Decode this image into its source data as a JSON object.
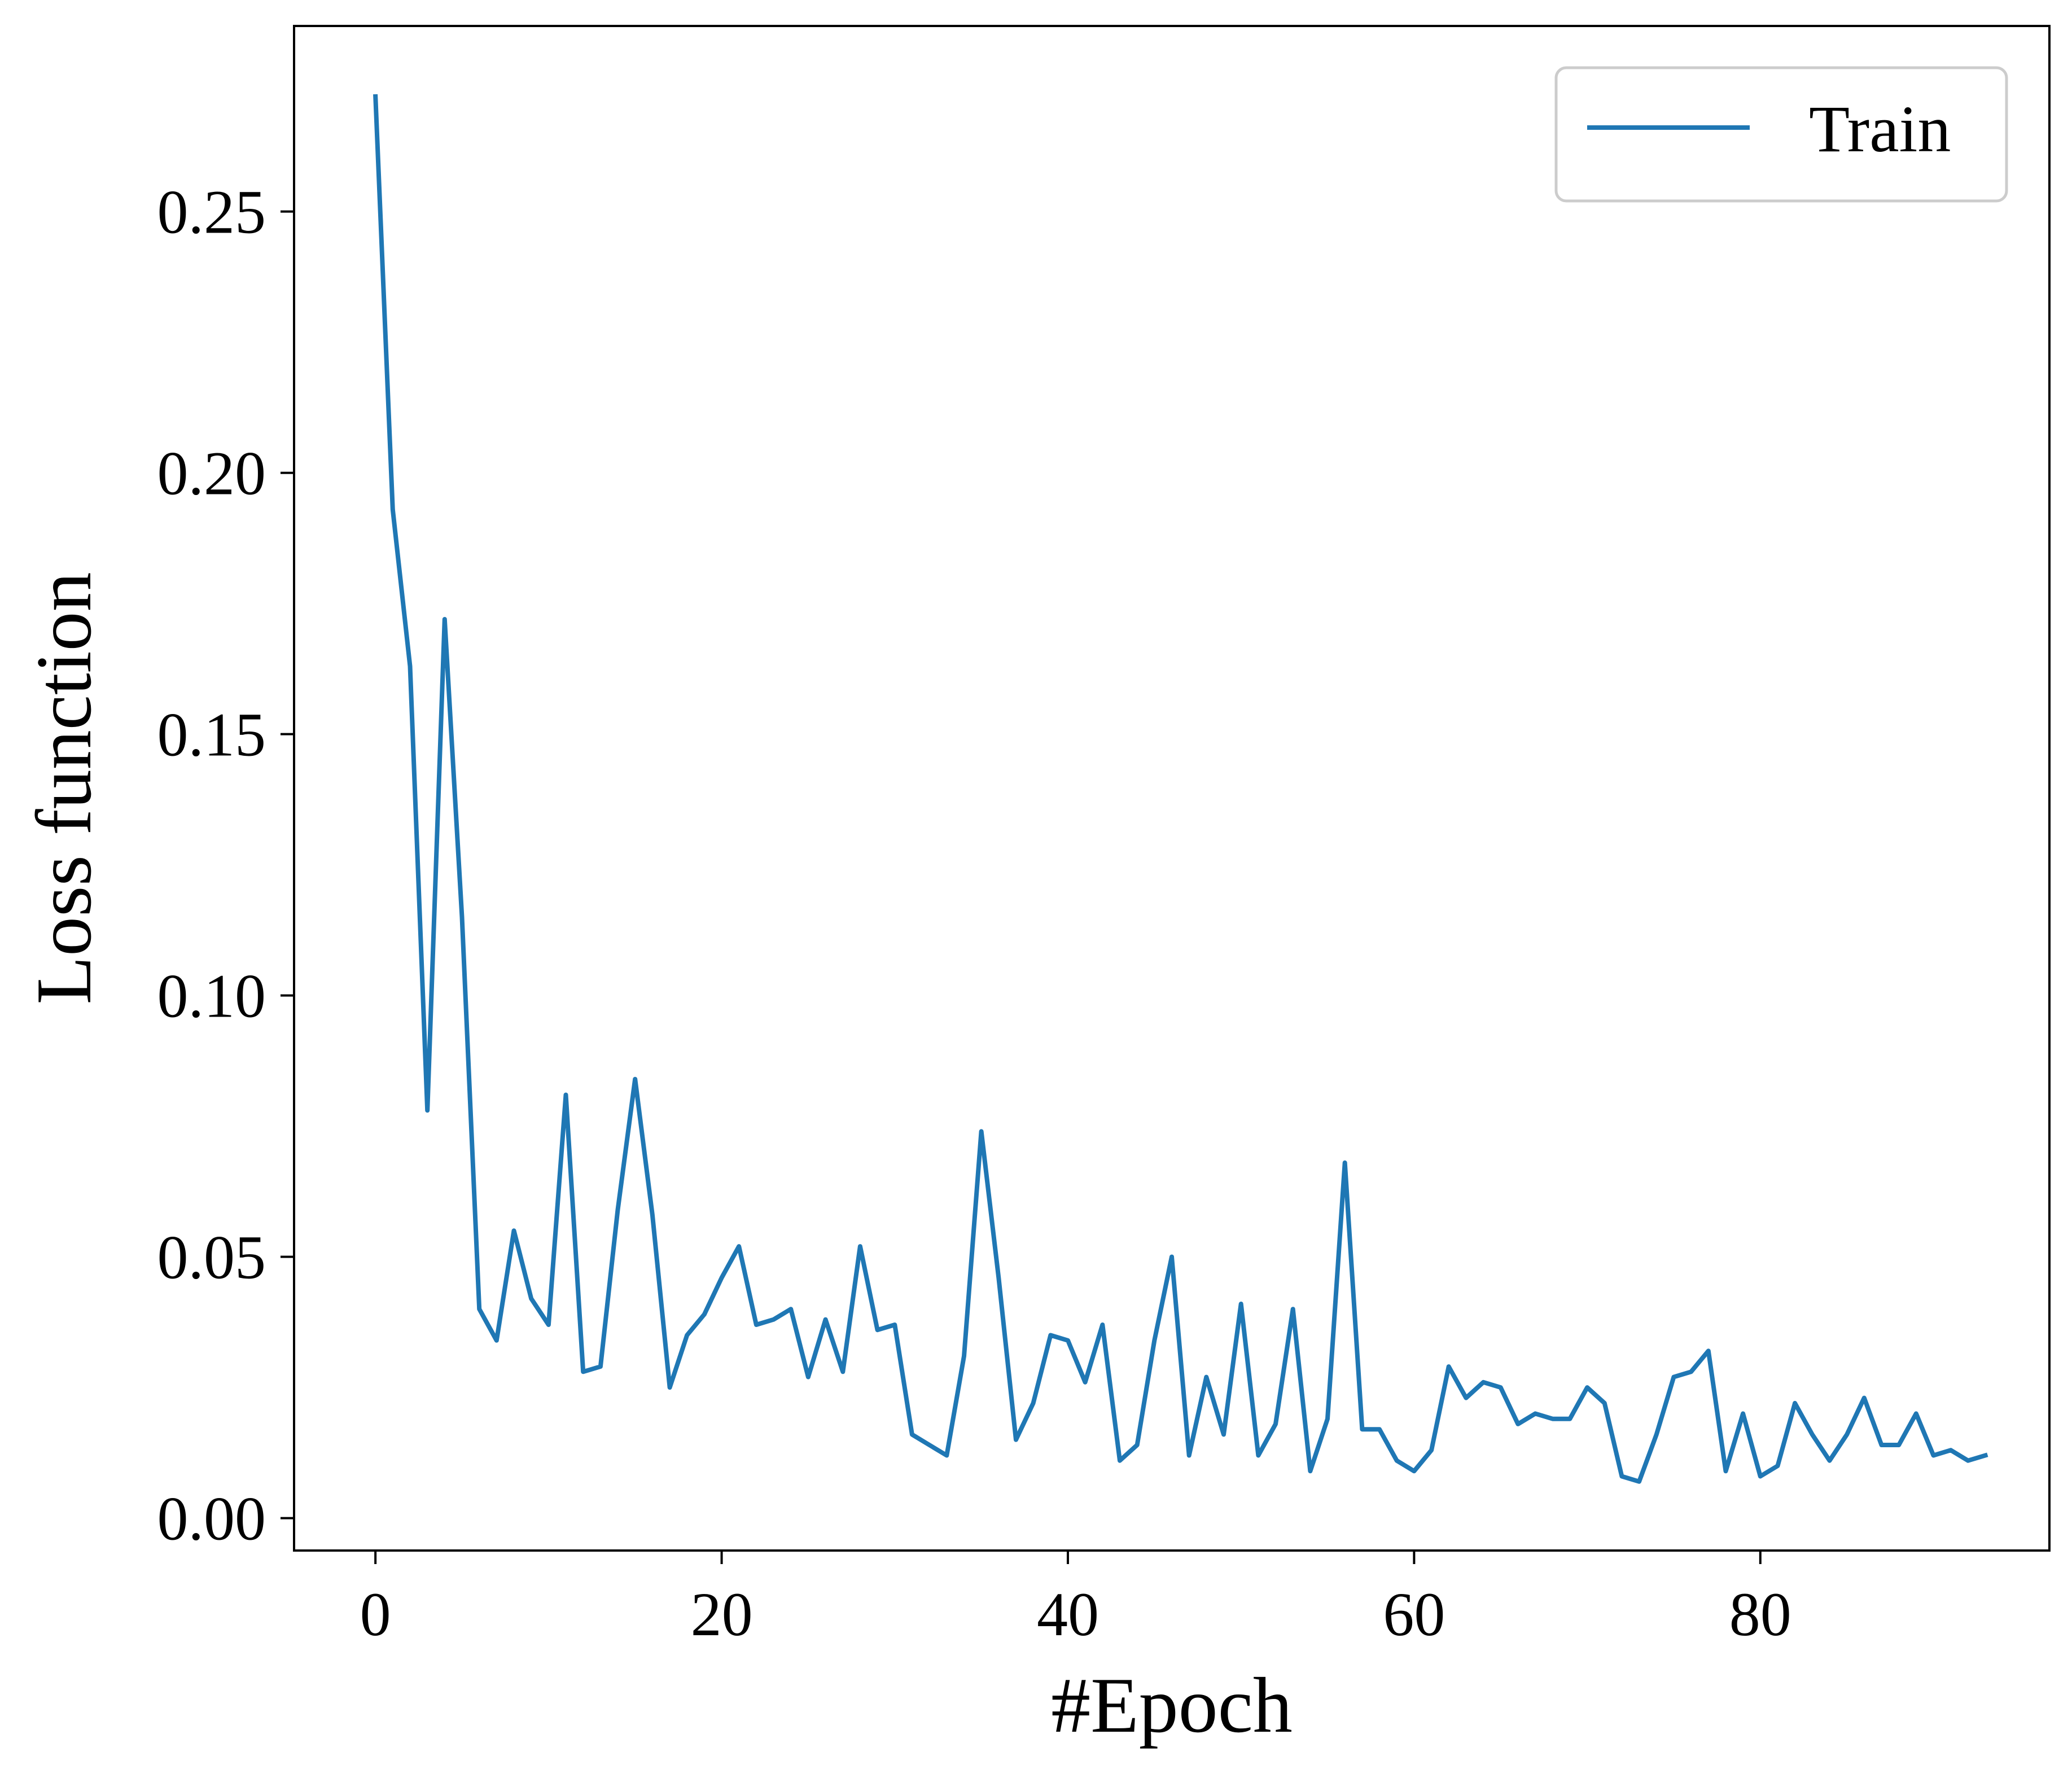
{
  "chart_data": {
    "type": "line",
    "title": "",
    "xlabel": "#Epoch",
    "ylabel": "Loss function",
    "xlim": [
      -4.7,
      96.7
    ],
    "ylim": [
      -0.0062,
      0.2855
    ],
    "xticks": [
      0,
      20,
      40,
      60,
      80
    ],
    "xtick_labels": [
      "0",
      "20",
      "40",
      "60",
      "80"
    ],
    "yticks": [
      0.0,
      0.05,
      0.1,
      0.15,
      0.2,
      0.25
    ],
    "ytick_labels": [
      "0.00",
      "0.05",
      "0.10",
      "0.15",
      "0.20",
      "0.25"
    ],
    "grid": false,
    "legend": {
      "position": "top-right",
      "entries": [
        "Train"
      ]
    },
    "series": [
      {
        "name": "Train",
        "color": "#1f77b4",
        "x": [
          0,
          1,
          2,
          3,
          4,
          5,
          6,
          7,
          8,
          9,
          10,
          11,
          12,
          13,
          14,
          15,
          16,
          17,
          18,
          19,
          20,
          21,
          22,
          23,
          24,
          25,
          26,
          27,
          28,
          29,
          30,
          31,
          32,
          33,
          34,
          35,
          36,
          37,
          38,
          39,
          40,
          41,
          42,
          43,
          44,
          45,
          46,
          47,
          48,
          49,
          50,
          51,
          52,
          53,
          54,
          55,
          56,
          57,
          58,
          59,
          60,
          61,
          62,
          63,
          64,
          65,
          66,
          67,
          68,
          69,
          70,
          71,
          72,
          73,
          74,
          75,
          76,
          77,
          78,
          79,
          80,
          81,
          82,
          83,
          84,
          85,
          86,
          87,
          88,
          89,
          90,
          91,
          92,
          93
        ],
        "y": [
          0.272,
          0.193,
          0.163,
          0.078,
          0.172,
          0.115,
          0.04,
          0.034,
          0.055,
          0.042,
          0.037,
          0.081,
          0.028,
          0.029,
          0.059,
          0.084,
          0.058,
          0.025,
          0.035,
          0.039,
          0.046,
          0.052,
          0.037,
          0.038,
          0.04,
          0.027,
          0.038,
          0.028,
          0.052,
          0.036,
          0.037,
          0.016,
          0.014,
          0.012,
          0.031,
          0.074,
          0.046,
          0.015,
          0.022,
          0.035,
          0.034,
          0.026,
          0.037,
          0.011,
          0.014,
          0.034,
          0.05,
          0.012,
          0.027,
          0.016,
          0.041,
          0.012,
          0.018,
          0.04,
          0.009,
          0.019,
          0.068,
          0.017,
          0.017,
          0.011,
          0.009,
          0.013,
          0.029,
          0.023,
          0.026,
          0.025,
          0.018,
          0.02,
          0.019,
          0.019,
          0.025,
          0.022,
          0.008,
          0.007,
          0.016,
          0.027,
          0.028,
          0.032,
          0.009,
          0.02,
          0.008,
          0.01,
          0.022,
          0.016,
          0.011,
          0.016,
          0.023,
          0.014,
          0.014,
          0.02,
          0.012,
          0.013,
          0.011,
          0.012
        ]
      }
    ]
  }
}
